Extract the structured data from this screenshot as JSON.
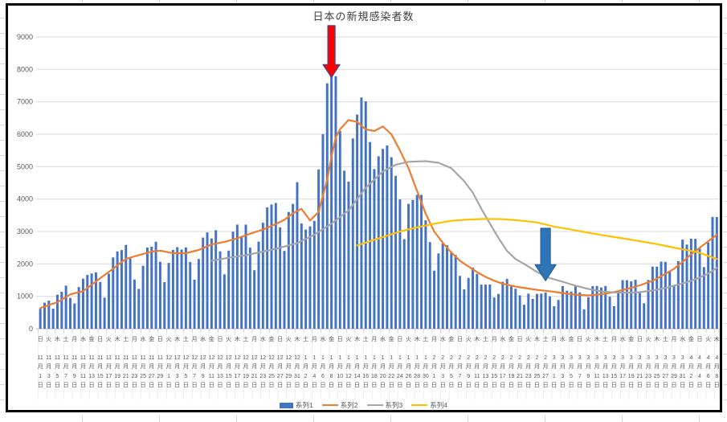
{
  "chart_data": {
    "type": "combo",
    "title": "日本の新規感染者数",
    "grid": true,
    "legend": {
      "position": "bottom"
    },
    "y_axis": {
      "min": 0,
      "max": 9000,
      "step": 1000,
      "tick_labels": [
        "0",
        "1000",
        "2000",
        "3000",
        "4000",
        "5000",
        "6000",
        "7000",
        "8000",
        "9000"
      ]
    },
    "x_label_stride_days": 2,
    "x_labels": [
      [
        "日",
        11,
        1
      ],
      [
        "火",
        11,
        3
      ],
      [
        "木",
        11,
        5
      ],
      [
        "土",
        11,
        7
      ],
      [
        "月",
        11,
        9
      ],
      [
        "水",
        11,
        11
      ],
      [
        "金",
        11,
        13
      ],
      [
        "日",
        11,
        15
      ],
      [
        "火",
        11,
        17
      ],
      [
        "木",
        11,
        19
      ],
      [
        "土",
        11,
        21
      ],
      [
        "月",
        11,
        23
      ],
      [
        "水",
        11,
        25
      ],
      [
        "金",
        11,
        27
      ],
      [
        "日",
        11,
        29
      ],
      [
        "火",
        12,
        1
      ],
      [
        "木",
        12,
        3
      ],
      [
        "土",
        12,
        5
      ],
      [
        "月",
        12,
        7
      ],
      [
        "水",
        12,
        9
      ],
      [
        "金",
        12,
        11
      ],
      [
        "日",
        12,
        13
      ],
      [
        "火",
        12,
        15
      ],
      [
        "木",
        12,
        17
      ],
      [
        "土",
        12,
        19
      ],
      [
        "月",
        12,
        21
      ],
      [
        "水",
        12,
        23
      ],
      [
        "金",
        12,
        25
      ],
      [
        "日",
        12,
        27
      ],
      [
        "火",
        12,
        29
      ],
      [
        "木",
        12,
        31
      ],
      [
        "土",
        1,
        2
      ],
      [
        "月",
        1,
        4
      ],
      [
        "水",
        1,
        6
      ],
      [
        "金",
        1,
        8
      ],
      [
        "日",
        1,
        10
      ],
      [
        "火",
        1,
        12
      ],
      [
        "木",
        1,
        14
      ],
      [
        "土",
        1,
        16
      ],
      [
        "月",
        1,
        18
      ],
      [
        "水",
        1,
        20
      ],
      [
        "金",
        1,
        22
      ],
      [
        "日",
        1,
        24
      ],
      [
        "火",
        1,
        26
      ],
      [
        "木",
        1,
        28
      ],
      [
        "土",
        1,
        30
      ],
      [
        "月",
        2,
        1
      ],
      [
        "水",
        2,
        3
      ],
      [
        "金",
        2,
        5
      ],
      [
        "日",
        2,
        7
      ],
      [
        "火",
        2,
        9
      ],
      [
        "木",
        2,
        11
      ],
      [
        "土",
        2,
        13
      ],
      [
        "月",
        2,
        15
      ],
      [
        "水",
        2,
        17
      ],
      [
        "金",
        2,
        19
      ],
      [
        "日",
        2,
        21
      ],
      [
        "火",
        2,
        23
      ],
      [
        "木",
        2,
        25
      ],
      [
        "土",
        2,
        27
      ],
      [
        "月",
        3,
        1
      ],
      [
        "水",
        3,
        3
      ],
      [
        "金",
        3,
        5
      ],
      [
        "日",
        3,
        7
      ],
      [
        "火",
        3,
        9
      ],
      [
        "木",
        3,
        11
      ],
      [
        "土",
        3,
        13
      ],
      [
        "月",
        3,
        15
      ],
      [
        "水",
        3,
        17
      ],
      [
        "金",
        3,
        19
      ],
      [
        "日",
        3,
        21
      ],
      [
        "火",
        3,
        23
      ],
      [
        "木",
        3,
        25
      ],
      [
        "土",
        3,
        27
      ],
      [
        "月",
        3,
        29
      ],
      [
        "水",
        3,
        31
      ],
      [
        "金",
        4,
        2
      ],
      [
        "日",
        4,
        4
      ],
      [
        "火",
        4,
        6
      ],
      [
        "木",
        4,
        8
      ]
    ],
    "series": [
      {
        "name": "系列1",
        "type": "bar",
        "color": "#4472C4",
        "values": [
          614,
          804,
          867,
          620,
          1050,
          1141,
          1331,
          949,
          780,
          1284,
          1543,
          1660,
          1704,
          1739,
          1441,
          959,
          1699,
          2201,
          2386,
          2427,
          2586,
          2168,
          1520,
          1229,
          1944,
          2504,
          2531,
          2684,
          2066,
          1438,
          2030,
          2430,
          2518,
          2442,
          2508,
          2058,
          1515,
          2152,
          2811,
          2972,
          2787,
          3041,
          2388,
          1680,
          2410,
          2994,
          3211,
          2829,
          3212,
          2501,
          1806,
          2688,
          3271,
          3742,
          3832,
          3881,
          3127,
          2403,
          3604,
          3852,
          4520,
          3246,
          3059,
          3158,
          3325,
          4915,
          6004,
          7571,
          7844,
          7790,
          6097,
          4876,
          4538,
          5870,
          6607,
          7133,
          7014,
          5759,
          4925,
          5320,
          5549,
          5653,
          5292,
          4717,
          3989,
          2764,
          3853,
          3971,
          4133,
          4131,
          3344,
          2673,
          1791,
          2324,
          2631,
          2576,
          2372,
          2277,
          1630,
          1216,
          1570,
          1887,
          1693,
          1362,
          1362,
          1364,
          965,
          1076,
          1448,
          1538,
          1301,
          1234,
          1032,
          739,
          1084,
          922,
          1076,
          1083,
          1119,
          999,
          697,
          888,
          1316,
          1173,
          1148,
          1330,
          1121,
          599,
          974,
          1316,
          1320,
          1271,
          1320,
          989,
          695,
          1133,
          1500,
          1499,
          1463,
          1511,
          1121,
          786,
          1504,
          1917,
          1918,
          2070,
          2063,
          1785,
          1353,
          2087,
          2750,
          2597,
          2778,
          2774,
          2472,
          1902,
          2663,
          3451,
          3447
        ]
      },
      {
        "name": "系列2",
        "type": "line",
        "color": "#ED7D31",
        "points": [
          [
            0,
            640
          ],
          [
            4,
            820
          ],
          [
            7,
            1060
          ],
          [
            10,
            1160
          ],
          [
            14,
            1560
          ],
          [
            17,
            1850
          ],
          [
            20,
            2160
          ],
          [
            23,
            2270
          ],
          [
            26,
            2380
          ],
          [
            28,
            2410
          ],
          [
            31,
            2330
          ],
          [
            34,
            2330
          ],
          [
            37,
            2430
          ],
          [
            40,
            2600
          ],
          [
            43,
            2680
          ],
          [
            46,
            2790
          ],
          [
            49,
            2930
          ],
          [
            52,
            3060
          ],
          [
            55,
            3230
          ],
          [
            57,
            3360
          ],
          [
            59,
            3560
          ],
          [
            61,
            3700
          ],
          [
            63,
            3340
          ],
          [
            65,
            3600
          ],
          [
            67,
            4600
          ],
          [
            68,
            5300
          ],
          [
            69,
            5900
          ],
          [
            70,
            6150
          ],
          [
            72,
            6440
          ],
          [
            74,
            6380
          ],
          [
            76,
            6150
          ],
          [
            78,
            6100
          ],
          [
            80,
            6240
          ],
          [
            82,
            6000
          ],
          [
            84,
            5500
          ],
          [
            86,
            4950
          ],
          [
            88,
            4250
          ],
          [
            90,
            3550
          ],
          [
            92,
            3000
          ],
          [
            94,
            2650
          ],
          [
            96,
            2350
          ],
          [
            98,
            2100
          ],
          [
            100,
            1920
          ],
          [
            102,
            1750
          ],
          [
            104,
            1600
          ],
          [
            106,
            1480
          ],
          [
            108,
            1390
          ],
          [
            110,
            1330
          ],
          [
            112,
            1280
          ],
          [
            114,
            1240
          ],
          [
            116,
            1200
          ],
          [
            118,
            1170
          ],
          [
            120,
            1140
          ],
          [
            122,
            1100
          ],
          [
            125,
            1050
          ],
          [
            128,
            1030
          ],
          [
            131,
            1060
          ],
          [
            134,
            1130
          ],
          [
            137,
            1230
          ],
          [
            140,
            1340
          ],
          [
            143,
            1480
          ],
          [
            145,
            1620
          ],
          [
            148,
            1850
          ],
          [
            150,
            2060
          ],
          [
            152,
            2300
          ],
          [
            154,
            2500
          ],
          [
            156,
            2700
          ],
          [
            158,
            2900
          ]
        ]
      },
      {
        "name": "系列3",
        "type": "line",
        "color": "#A5A5A5",
        "points": [
          [
            40,
            2100
          ],
          [
            44,
            2190
          ],
          [
            48,
            2270
          ],
          [
            52,
            2380
          ],
          [
            56,
            2500
          ],
          [
            60,
            2640
          ],
          [
            64,
            2900
          ],
          [
            68,
            3240
          ],
          [
            72,
            3650
          ],
          [
            76,
            4350
          ],
          [
            80,
            4850
          ],
          [
            83,
            5060
          ],
          [
            86,
            5150
          ],
          [
            90,
            5170
          ],
          [
            93,
            5120
          ],
          [
            96,
            4950
          ],
          [
            99,
            4550
          ],
          [
            101,
            4200
          ],
          [
            103,
            3700
          ],
          [
            105,
            3250
          ],
          [
            107,
            2800
          ],
          [
            109,
            2400
          ],
          [
            111,
            2150
          ],
          [
            113,
            2000
          ],
          [
            116,
            1750
          ],
          [
            119,
            1560
          ],
          [
            122,
            1450
          ],
          [
            125,
            1330
          ],
          [
            128,
            1230
          ],
          [
            131,
            1150
          ],
          [
            134,
            1120
          ],
          [
            137,
            1110
          ],
          [
            140,
            1130
          ],
          [
            143,
            1180
          ],
          [
            146,
            1260
          ],
          [
            149,
            1360
          ],
          [
            152,
            1480
          ],
          [
            154,
            1580
          ],
          [
            156,
            1700
          ],
          [
            158,
            1880
          ]
        ]
      },
      {
        "name": "系列4",
        "type": "line",
        "color": "#FFC000",
        "points": [
          [
            74,
            2570
          ],
          [
            77,
            2700
          ],
          [
            80,
            2830
          ],
          [
            84,
            3000
          ],
          [
            88,
            3130
          ],
          [
            92,
            3240
          ],
          [
            96,
            3330
          ],
          [
            100,
            3370
          ],
          [
            104,
            3390
          ],
          [
            108,
            3380
          ],
          [
            112,
            3340
          ],
          [
            116,
            3280
          ],
          [
            120,
            3150
          ],
          [
            124,
            3060
          ],
          [
            128,
            2960
          ],
          [
            132,
            2870
          ],
          [
            136,
            2790
          ],
          [
            140,
            2700
          ],
          [
            144,
            2610
          ],
          [
            147,
            2530
          ],
          [
            150,
            2450
          ],
          [
            152,
            2400
          ],
          [
            154,
            2340
          ],
          [
            156,
            2250
          ],
          [
            158,
            2150
          ]
        ]
      }
    ],
    "annotations": [
      {
        "name": "red-down-arrow",
        "fill": "#FF0000",
        "stroke": "#3A4BA0",
        "day": 68,
        "value_top": 9350,
        "value_tip": 7750,
        "shaft_half": 4.5,
        "head_half": 10.5,
        "head_len": 16
      },
      {
        "name": "blue-down-arrow",
        "fill": "#2E75B6",
        "stroke": "#24619E",
        "day": 118,
        "value_top": 3100,
        "value_tip": 1480,
        "shaft_half": 6,
        "head_half": 13,
        "head_len": 20
      }
    ]
  }
}
